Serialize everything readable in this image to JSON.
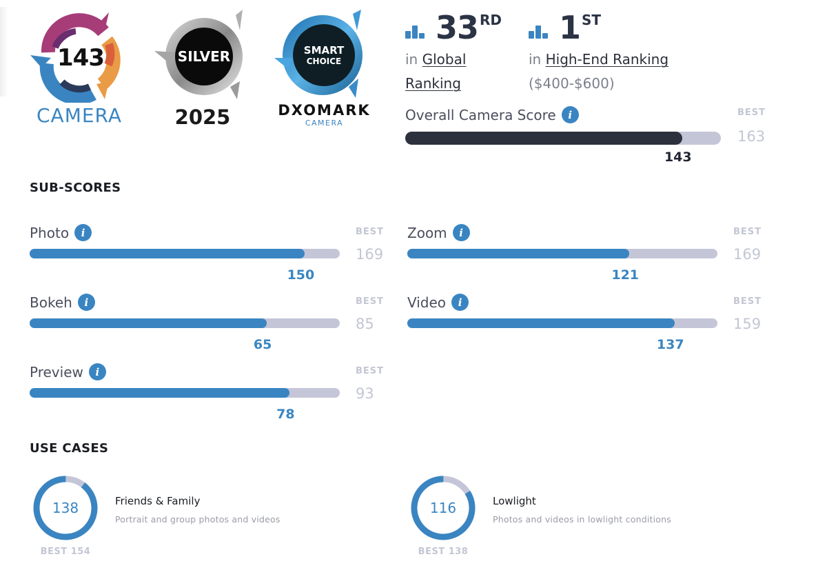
{
  "badges": {
    "camera_score": {
      "score": "143",
      "label": "CAMERA"
    },
    "silver": {
      "label": "SILVER",
      "year": "2025"
    },
    "smart_choice": {
      "line1": "SMART",
      "line2": "CHOICE",
      "brand": "DXOMARK",
      "sub": "CAMERA"
    }
  },
  "rankings": [
    {
      "rank": "33",
      "suffix": "RD",
      "prefix": "in",
      "link": "Global Ranking",
      "note": ""
    },
    {
      "rank": "1",
      "suffix": "ST",
      "prefix": "in",
      "link": "High-End Ranking",
      "note": "($400-$600)"
    }
  ],
  "overall": {
    "label": "Overall Camera Score",
    "value": 143,
    "best_label": "BEST",
    "best": 163
  },
  "sections": {
    "sub_scores": "SUB-SCORES",
    "use_cases": "USE CASES"
  },
  "sub_scores": [
    {
      "label": "Photo",
      "value": 150,
      "best_label": "BEST",
      "best": 169
    },
    {
      "label": "Zoom",
      "value": 121,
      "best_label": "BEST",
      "best": 169
    },
    {
      "label": "Bokeh",
      "value": 65,
      "best_label": "BEST",
      "best": 85
    },
    {
      "label": "Video",
      "value": 137,
      "best_label": "BEST",
      "best": 159
    },
    {
      "label": "Preview",
      "value": 78,
      "best_label": "BEST",
      "best": 93
    }
  ],
  "use_cases": [
    {
      "title": "Friends & Family",
      "desc": "Portrait and group photos and videos",
      "value": 138,
      "best_text": "BEST 154",
      "best": 154
    },
    {
      "title": "Lowlight",
      "desc": "Photos and videos in lowlight conditions",
      "value": 116,
      "best_text": "BEST 138",
      "best": 138
    }
  ],
  "colors": {
    "accent": "#3a85c1",
    "track": "#c4c6d8",
    "overall_fill": "#2c313d",
    "best_text": "#c3c6d4"
  },
  "info_icon_glyph": "i"
}
